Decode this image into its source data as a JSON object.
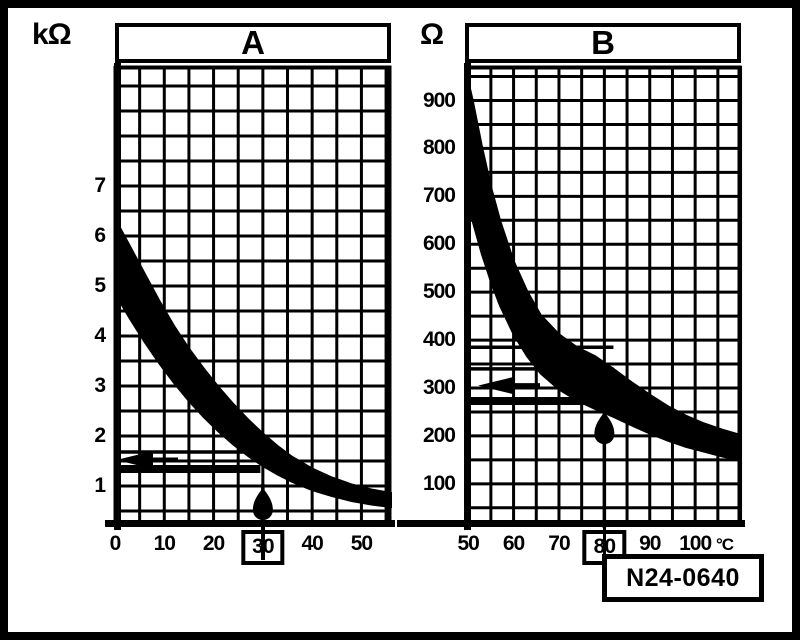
{
  "figure": {
    "id_label": "N24-0640",
    "ink_color": "#000000",
    "paper_color": "#ffffff"
  },
  "chart_data": [
    {
      "type": "area",
      "panel": "A",
      "y_unit": "kΩ",
      "x_axis_unit": "",
      "x_ticks": [
        0,
        10,
        20,
        30,
        40,
        50
      ],
      "boxed_x_tick": 30,
      "y_ticks": [
        1,
        2,
        3,
        4,
        5,
        6,
        7
      ],
      "x_range": [
        0,
        56
      ],
      "y_range": [
        0.2,
        9.4
      ],
      "x_minor_step": 5,
      "y_minor_step": 0.5,
      "grid": "on",
      "band_upper": [
        [
          0,
          6.35
        ],
        [
          3,
          5.8
        ],
        [
          6,
          5.25
        ],
        [
          9,
          4.7
        ],
        [
          12,
          4.2
        ],
        [
          15,
          3.75
        ],
        [
          18,
          3.35
        ],
        [
          21,
          2.98
        ],
        [
          24,
          2.64
        ],
        [
          27,
          2.33
        ],
        [
          30,
          2.05
        ],
        [
          33,
          1.8
        ],
        [
          36,
          1.58
        ],
        [
          40,
          1.35
        ],
        [
          44,
          1.17
        ],
        [
          48,
          1.03
        ],
        [
          52,
          0.93
        ],
        [
          56,
          0.86
        ]
      ],
      "band_lower": [
        [
          0,
          4.85
        ],
        [
          3,
          4.35
        ],
        [
          6,
          3.88
        ],
        [
          9,
          3.45
        ],
        [
          12,
          3.06
        ],
        [
          15,
          2.7
        ],
        [
          18,
          2.38
        ],
        [
          21,
          2.09
        ],
        [
          24,
          1.83
        ],
        [
          27,
          1.6
        ],
        [
          30,
          1.4
        ],
        [
          33,
          1.23
        ],
        [
          36,
          1.08
        ],
        [
          40,
          0.92
        ],
        [
          44,
          0.8
        ],
        [
          48,
          0.7
        ],
        [
          52,
          0.63
        ],
        [
          56,
          0.58
        ]
      ],
      "ref_lines": [
        {
          "value": 1.68,
          "x_end": 29,
          "style": "thin"
        },
        {
          "value": 1.34,
          "x_end": 29.5,
          "style": "thick"
        }
      ],
      "left_arrow_value": 1.52,
      "vertical_arrow": {
        "x": 30,
        "tip_value": 1.04
      }
    },
    {
      "type": "area",
      "panel": "B",
      "y_unit": "Ω",
      "x_axis_unit": "°C",
      "x_ticks": [
        50,
        60,
        70,
        80,
        90,
        100
      ],
      "boxed_x_tick": 80,
      "y_ticks": [
        100,
        200,
        300,
        400,
        500,
        600,
        700,
        800,
        900
      ],
      "x_range": [
        49.3,
        110.1
      ],
      "y_range": [
        12,
        972
      ],
      "x_minor_step": 5,
      "y_minor_step": 50,
      "grid": "on",
      "band_upper": [
        [
          49.3,
          970
        ],
        [
          51,
          900
        ],
        [
          53,
          805
        ],
        [
          55,
          720
        ],
        [
          57,
          650
        ],
        [
          60,
          565
        ],
        [
          63,
          502
        ],
        [
          66,
          452
        ],
        [
          70,
          412
        ],
        [
          74,
          385
        ],
        [
          78,
          366
        ],
        [
          82,
          340
        ],
        [
          86,
          312
        ],
        [
          90,
          286
        ],
        [
          94,
          262
        ],
        [
          98,
          242
        ],
        [
          102,
          226
        ],
        [
          106,
          213
        ],
        [
          110,
          202
        ]
      ],
      "band_lower": [
        [
          49.3,
          700
        ],
        [
          51,
          648
        ],
        [
          53,
          580
        ],
        [
          55,
          522
        ],
        [
          57,
          472
        ],
        [
          60,
          412
        ],
        [
          63,
          366
        ],
        [
          66,
          330
        ],
        [
          70,
          297
        ],
        [
          74,
          274
        ],
        [
          78,
          256
        ],
        [
          82,
          240
        ],
        [
          86,
          222
        ],
        [
          90,
          205
        ],
        [
          94,
          190
        ],
        [
          98,
          177
        ],
        [
          102,
          167
        ],
        [
          106,
          157
        ],
        [
          110,
          149
        ]
      ],
      "ref_lines": [
        {
          "value": 385,
          "x_end": 82,
          "style": "thin"
        },
        {
          "value": 340,
          "x_end": 82,
          "style": "thin"
        },
        {
          "value": 273,
          "x_end": 81,
          "style": "thick"
        }
      ],
      "left_arrow_value": 305,
      "vertical_arrow": {
        "x": 80,
        "tip_value": 258
      }
    }
  ]
}
